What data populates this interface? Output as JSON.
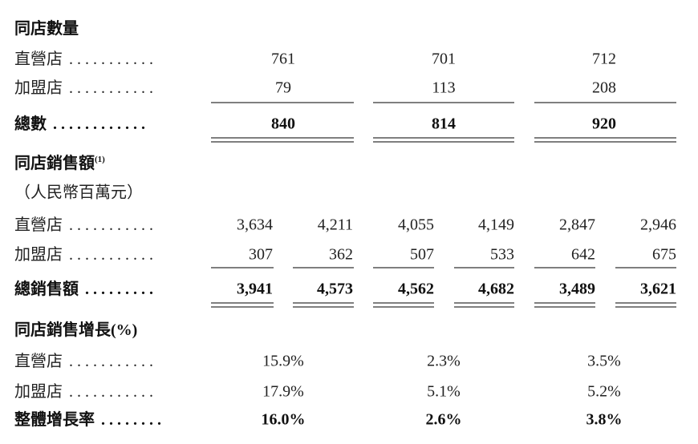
{
  "sections": [
    {
      "title": "同店數量",
      "rows": [
        {
          "label": "直營店",
          "leader": ". . . . . . . . . . .",
          "values": [
            "761",
            "701",
            "712"
          ]
        },
        {
          "label": "加盟店",
          "leader": ". . . . . . . . . . .",
          "values": [
            "79",
            "113",
            "208"
          ]
        },
        {
          "label": "總數",
          "leader": ". . . . . . . . . . . .",
          "values": [
            "840",
            "814",
            "920"
          ]
        }
      ]
    },
    {
      "title": "同店銷售額",
      "note": "(1)",
      "subtitle": "（人民幣百萬元）",
      "rows": [
        {
          "label": "直營店",
          "leader": ". . . . . . . . . . .",
          "values": [
            "3,634",
            "4,211",
            "4,055",
            "4,149",
            "2,847",
            "2,946"
          ]
        },
        {
          "label": "加盟店",
          "leader": ". . . . . . . . . . .",
          "values": [
            "307",
            "362",
            "507",
            "533",
            "642",
            "675"
          ]
        },
        {
          "label": "總銷售額",
          "leader": ". . . . . . . . .",
          "values": [
            "3,941",
            "4,573",
            "4,562",
            "4,682",
            "3,489",
            "3,621"
          ]
        }
      ]
    },
    {
      "title": "同店銷售增長(%)",
      "rows": [
        {
          "label": "直營店",
          "leader": ". . . . . . . . . . .",
          "values": [
            "15.9%",
            "2.3%",
            "3.5%"
          ]
        },
        {
          "label": "加盟店",
          "leader": ". . . . . . . . . . .",
          "values": [
            "17.9%",
            "5.1%",
            "5.2%"
          ]
        },
        {
          "label": "整體增長率",
          "leader": ". . . . . . . .",
          "values": [
            "16.0%",
            "2.6%",
            "3.8%"
          ]
        }
      ]
    }
  ]
}
